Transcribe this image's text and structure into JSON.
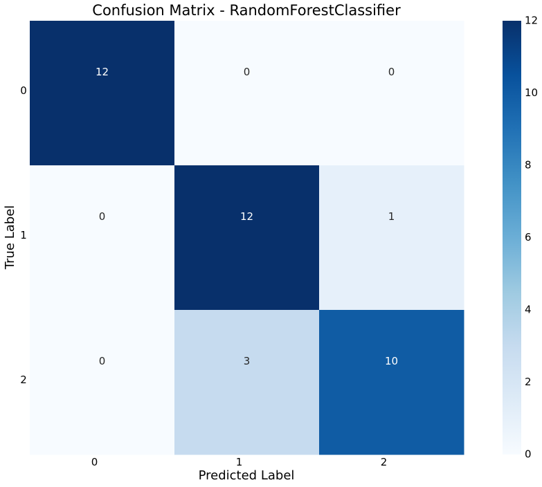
{
  "chart_data": {
    "type": "heatmap",
    "title": "Confusion Matrix - RandomForestClassifier",
    "xlabel": "Predicted Label",
    "ylabel": "True Label",
    "x_categories": [
      "0",
      "1",
      "2"
    ],
    "y_categories": [
      "0",
      "1",
      "2"
    ],
    "values": [
      [
        12,
        0,
        0
      ],
      [
        0,
        12,
        1
      ],
      [
        0,
        3,
        10
      ]
    ],
    "colormap": "Blues",
    "colorbar": {
      "range": [
        0,
        12
      ],
      "ticks": [
        "0",
        "2",
        "4",
        "6",
        "8",
        "10",
        "12"
      ]
    },
    "grid": false,
    "legend": "colorbar-right"
  }
}
